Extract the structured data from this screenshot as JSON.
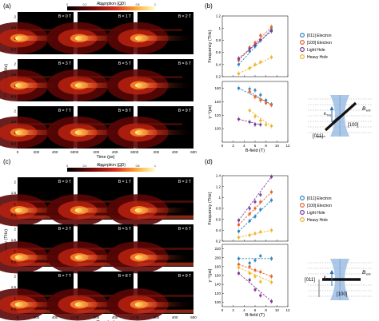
{
  "colorbar": {
    "label": "Absorption (OD)",
    "ticks": [
      "0",
      "0.2",
      "0.4",
      "0.6",
      "0.8",
      "1"
    ]
  },
  "panels": [
    {
      "letter": "(a)",
      "b_labels": [
        "B = 0 T",
        "B = 1 T",
        "B = 2 T",
        "B = 3 T",
        "B = 5 T",
        "B = 6 T",
        "B = 7 T",
        "B = 8 T",
        "B = 9 T"
      ],
      "ylabel": "Frequency (THz)",
      "xlabel": "Time (ps)",
      "y_ticks": [
        "2",
        "1.5",
        "1",
        "0.5"
      ],
      "x_ticks": [
        "0",
        "200",
        "400",
        "600"
      ]
    },
    {
      "letter": "(c)",
      "b_labels": [
        "B = 0 T",
        "B = 1 T",
        "B = 2 T",
        "B = 3 T",
        "B = 5 T",
        "B = 6 T",
        "B = 7 T",
        "B = 8 T",
        "B = 9 T"
      ],
      "ylabel": "Frequency (THz)",
      "xlabel": "Time (ps)",
      "y_ticks": [
        "2",
        "1.5",
        "1",
        "0.5"
      ],
      "x_ticks": [
        "0",
        "200",
        "400",
        "600"
      ]
    }
  ],
  "legend": {
    "entries": [
      {
        "name": "[011] Electron",
        "color": "#2e86c1"
      },
      {
        "name": "[100] Electron",
        "color": "#e8632a"
      },
      {
        "name": "Light Hole",
        "color": "#7d3c98"
      },
      {
        "name": "Heavy Hole",
        "color": "#f0b429"
      }
    ]
  },
  "chart_data": [
    {
      "panel": "(b)",
      "type": "scatter",
      "ylabel": "Frequency (THz)",
      "xlim": [
        0,
        12
      ],
      "ylim": [
        0.2,
        1.2
      ],
      "yticks": [
        "1.2",
        "1",
        "0.8",
        "0.6",
        "0.4",
        "0.2"
      ],
      "series": [
        {
          "name": "[011] Electron",
          "color": "#2e86c1",
          "x": [
            3,
            5,
            6,
            7,
            9
          ],
          "y": [
            0.4,
            0.62,
            0.7,
            0.8,
            0.98
          ]
        },
        {
          "name": "[100] Electron",
          "color": "#e8632a",
          "x": [
            3,
            5,
            6,
            7,
            9
          ],
          "y": [
            0.47,
            0.68,
            0.76,
            0.88,
            1.02
          ]
        },
        {
          "name": "Light Hole",
          "color": "#7d3c98",
          "x": [
            3,
            5,
            6,
            7,
            9
          ],
          "y": [
            0.5,
            0.66,
            0.72,
            0.8,
            0.95
          ]
        },
        {
          "name": "Heavy Hole",
          "color": "#f0b429",
          "x": [
            3,
            5,
            6,
            7,
            9
          ],
          "y": [
            0.25,
            0.34,
            0.4,
            0.44,
            0.52
          ]
        }
      ]
    },
    {
      "panel": "(b)",
      "type": "scatter",
      "ylabel": "γ⁻¹(ps)",
      "xlabel": "B-field (T)",
      "xlim": [
        0,
        12
      ],
      "ylim": [
        80,
        170
      ],
      "xticks": [
        "0",
        "2",
        "4",
        "6",
        "8",
        "10",
        "12"
      ],
      "yticks": [
        "160",
        "140",
        "120",
        "100"
      ],
      "series": [
        {
          "name": "[011] Electron",
          "color": "#2e86c1",
          "x": [
            3,
            5,
            6,
            7,
            8,
            9
          ],
          "y": [
            160,
            159,
            157,
            150,
            142,
            136
          ]
        },
        {
          "name": "[100] Electron",
          "color": "#e8632a",
          "x": [
            5,
            6,
            7,
            8,
            9
          ],
          "y": [
            155,
            147,
            142,
            138,
            135
          ]
        },
        {
          "name": "Light Hole",
          "color": "#7d3c98",
          "x": [
            3,
            5,
            6,
            7
          ],
          "y": [
            114,
            110,
            106,
            106
          ]
        },
        {
          "name": "Heavy Hole",
          "color": "#f0b429",
          "x": [
            5,
            6,
            7,
            8,
            9
          ],
          "y": [
            127,
            118,
            112,
            106,
            104
          ]
        }
      ]
    },
    {
      "panel": "(d)",
      "type": "scatter",
      "ylabel": "Frequency (THz)",
      "xlim": [
        0,
        12
      ],
      "ylim": [
        0.2,
        1.4
      ],
      "yticks": [
        "1.4",
        "1.2",
        "1",
        "0.8",
        "0.6",
        "0.4",
        "0.2"
      ],
      "series": [
        {
          "name": "[011] Electron",
          "color": "#2e86c1",
          "x": [
            3,
            5,
            6,
            7,
            9
          ],
          "y": [
            0.38,
            0.57,
            0.65,
            0.78,
            0.95
          ]
        },
        {
          "name": "[100] Electron",
          "color": "#e8632a",
          "x": [
            3,
            5,
            6,
            7,
            9
          ],
          "y": [
            0.5,
            0.7,
            0.8,
            0.92,
            1.1
          ]
        },
        {
          "name": "Light Hole",
          "color": "#7d3c98",
          "x": [
            3,
            5,
            6,
            7,
            9
          ],
          "y": [
            0.58,
            0.8,
            0.92,
            1.05,
            1.38
          ]
        },
        {
          "name": "Heavy Hole",
          "color": "#f0b429",
          "x": [
            3,
            5,
            6,
            7,
            9
          ],
          "y": [
            0.27,
            0.31,
            0.34,
            0.37,
            0.4
          ]
        }
      ]
    },
    {
      "panel": "(d)",
      "type": "scatter",
      "ylabel": "γ⁻¹(ps)",
      "xlabel": "B-field (T)",
      "xlim": [
        0,
        12
      ],
      "ylim": [
        90,
        230
      ],
      "xticks": [
        "0",
        "2",
        "4",
        "6",
        "8",
        "10",
        "12"
      ],
      "yticks": [
        "220",
        "200",
        "180",
        "160",
        "140",
        "120",
        "100"
      ],
      "series": [
        {
          "name": "[011] Electron",
          "color": "#2e86c1",
          "x": [
            3,
            5,
            6,
            7,
            9
          ],
          "y": [
            198,
            188,
            194,
            204,
            198
          ]
        },
        {
          "name": "[100] Electron",
          "color": "#e8632a",
          "x": [
            3,
            5,
            6,
            7,
            9
          ],
          "y": [
            185,
            180,
            172,
            168,
            158
          ]
        },
        {
          "name": "Light Hole",
          "color": "#7d3c98",
          "x": [
            3,
            5,
            6,
            7,
            9
          ],
          "y": [
            165,
            150,
            128,
            115,
            102
          ]
        },
        {
          "name": "Heavy Hole",
          "color": "#f0b429",
          "x": [
            3,
            5,
            6,
            7,
            9
          ],
          "y": [
            178,
            165,
            158,
            146,
            145
          ]
        }
      ]
    }
  ],
  "diagrams": [
    {
      "panel": "(b)",
      "labels": {
        "field": "B",
        "field_sub": "ext",
        "k": "k",
        "k_sub": "THz",
        "dir1": "[100]",
        "dir2": "[011]"
      }
    },
    {
      "panel": "(d)",
      "labels": {
        "field": "B",
        "field_sub": "ext",
        "k": "k",
        "k_sub": "THz",
        "dir1": "[011]",
        "dir2": "[100]"
      }
    }
  ]
}
